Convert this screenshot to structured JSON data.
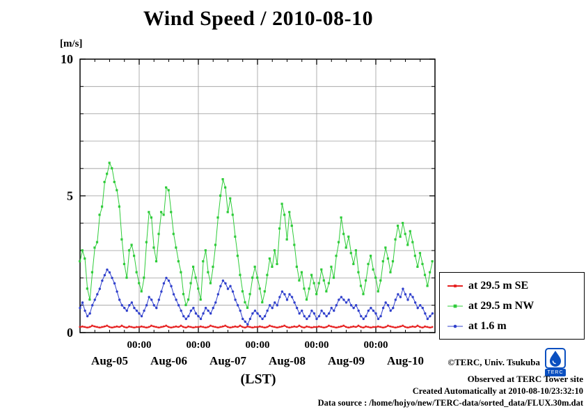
{
  "title": "Wind Speed / 2010-08-10",
  "y_axis_unit_label": "[m/s]",
  "x_axis_label": "(LST)",
  "footer": {
    "line1": "©TERC, Univ. Tsukuba",
    "line2": "Observed at TERC Tower site",
    "line3": "Created Automatically at 2010-08-10/23:32:10",
    "line4": "Data source : /home/hojyo/new/TERC-data/sorted_data/FLUX.30m.dat"
  },
  "logo": {
    "text": "TERC"
  },
  "chart_data": {
    "type": "line",
    "title": "Wind Speed / 2010-08-10",
    "xlabel": "(LST)",
    "ylabel": "[m/s]",
    "ylim": [
      0,
      10
    ],
    "y_major_ticks": [
      0,
      5,
      10
    ],
    "y_grid_interval": 1,
    "grid": true,
    "legend_position": "outside-right",
    "x_start": "Aug-05 00:00",
    "x_end": "Aug-11 00:00",
    "x_hours_total": 144,
    "sample_interval_hours": 1,
    "x_midnight_tick_label": "00:00",
    "day_labels": [
      "Aug-05",
      "Aug-06",
      "Aug-07",
      "Aug-08",
      "Aug-09",
      "Aug-10"
    ],
    "series": [
      {
        "name": "at 29.5 m SE",
        "color": "#e62020",
        "marker": "square",
        "marker_size": 2.4,
        "line_width": 2,
        "values": [
          0.2,
          0.22,
          0.2,
          0.18,
          0.2,
          0.25,
          0.22,
          0.2,
          0.18,
          0.2,
          0.22,
          0.25,
          0.2,
          0.18,
          0.2,
          0.22,
          0.2,
          0.25,
          0.2,
          0.18,
          0.22,
          0.2,
          0.18,
          0.2,
          0.2,
          0.22,
          0.2,
          0.18,
          0.2,
          0.25,
          0.22,
          0.2,
          0.18,
          0.2,
          0.22,
          0.25,
          0.2,
          0.18,
          0.2,
          0.22,
          0.2,
          0.25,
          0.2,
          0.18,
          0.22,
          0.2,
          0.18,
          0.2,
          0.2,
          0.22,
          0.2,
          0.18,
          0.2,
          0.25,
          0.22,
          0.2,
          0.18,
          0.2,
          0.22,
          0.25,
          0.2,
          0.18,
          0.2,
          0.22,
          0.2,
          0.25,
          0.2,
          0.18,
          0.22,
          0.2,
          0.18,
          0.2,
          0.2,
          0.22,
          0.2,
          0.18,
          0.2,
          0.25,
          0.22,
          0.2,
          0.18,
          0.2,
          0.22,
          0.25,
          0.2,
          0.18,
          0.2,
          0.22,
          0.2,
          0.25,
          0.2,
          0.18,
          0.22,
          0.2,
          0.18,
          0.2,
          0.2,
          0.22,
          0.2,
          0.18,
          0.2,
          0.25,
          0.22,
          0.2,
          0.18,
          0.2,
          0.22,
          0.25,
          0.2,
          0.18,
          0.2,
          0.22,
          0.2,
          0.25,
          0.2,
          0.18,
          0.22,
          0.2,
          0.18,
          0.2,
          0.2,
          0.22,
          0.2,
          0.18,
          0.2,
          0.25,
          0.22,
          0.2,
          0.18,
          0.2,
          0.22,
          0.25,
          0.2,
          0.18,
          0.2,
          0.22,
          0.2,
          0.25,
          0.2,
          0.18,
          0.22,
          0.2,
          0.18,
          0.2
        ]
      },
      {
        "name": "at 29.5 m NW",
        "color": "#2fcc3a",
        "marker": "square",
        "marker_size": 3.2,
        "line_width": 1,
        "values": [
          2.6,
          3.0,
          2.7,
          1.6,
          1.2,
          2.2,
          3.1,
          3.3,
          4.3,
          4.6,
          5.5,
          5.8,
          6.2,
          6.0,
          5.5,
          5.2,
          4.6,
          3.4,
          2.5,
          2.0,
          3.0,
          3.2,
          2.8,
          2.2,
          1.8,
          1.5,
          2.0,
          3.3,
          4.4,
          4.2,
          3.1,
          2.6,
          3.6,
          4.4,
          4.3,
          5.3,
          5.2,
          4.4,
          3.6,
          3.1,
          2.6,
          2.2,
          1.4,
          1.0,
          1.2,
          1.8,
          2.4,
          2.0,
          1.6,
          1.2,
          2.6,
          3.0,
          2.2,
          1.8,
          2.4,
          3.2,
          4.2,
          5.0,
          5.6,
          5.3,
          4.4,
          4.9,
          4.3,
          3.5,
          2.8,
          2.1,
          1.5,
          1.1,
          0.9,
          1.4,
          2.0,
          2.4,
          2.0,
          1.6,
          1.1,
          1.5,
          2.1,
          2.7,
          2.4,
          3.0,
          2.5,
          3.8,
          4.7,
          4.3,
          3.4,
          4.4,
          3.9,
          3.2,
          2.4,
          1.9,
          2.2,
          1.6,
          1.2,
          1.6,
          2.1,
          1.8,
          1.4,
          1.8,
          2.3,
          1.9,
          1.5,
          1.8,
          2.4,
          2.0,
          2.8,
          3.3,
          4.2,
          3.6,
          3.1,
          3.5,
          2.9,
          2.5,
          3.0,
          2.2,
          1.7,
          1.4,
          1.9,
          2.5,
          2.8,
          2.3,
          2.0,
          1.5,
          1.9,
          2.6,
          3.1,
          2.7,
          2.2,
          2.6,
          3.4,
          3.9,
          3.5,
          4.0,
          3.6,
          3.2,
          3.7,
          3.3,
          2.8,
          2.4,
          2.9,
          2.5,
          2.1,
          1.7,
          2.2,
          2.6
        ]
      },
      {
        "name": "at 1.6 m",
        "color": "#3040cc",
        "marker": "circle",
        "marker_size": 1.7,
        "line_width": 1,
        "values": [
          0.9,
          1.1,
          0.8,
          0.6,
          0.7,
          1.0,
          1.2,
          1.4,
          1.6,
          1.9,
          2.1,
          2.3,
          2.2,
          2.0,
          1.8,
          1.5,
          1.2,
          1.0,
          0.9,
          0.8,
          1.0,
          1.1,
          0.9,
          0.8,
          0.7,
          0.6,
          0.8,
          1.0,
          1.3,
          1.2,
          1.0,
          0.9,
          1.2,
          1.5,
          1.8,
          2.0,
          1.9,
          1.7,
          1.4,
          1.2,
          1.0,
          0.8,
          0.6,
          0.5,
          0.6,
          0.8,
          0.9,
          0.7,
          0.6,
          0.5,
          0.7,
          0.9,
          0.8,
          0.7,
          0.9,
          1.1,
          1.4,
          1.7,
          1.9,
          1.8,
          1.6,
          1.7,
          1.5,
          1.2,
          1.0,
          0.8,
          0.5,
          0.4,
          0.3,
          0.5,
          0.7,
          0.8,
          0.7,
          0.6,
          0.5,
          0.6,
          0.8,
          1.0,
          0.9,
          1.1,
          1.0,
          1.3,
          1.5,
          1.4,
          1.2,
          1.4,
          1.3,
          1.1,
          0.9,
          0.7,
          0.8,
          0.6,
          0.5,
          0.6,
          0.8,
          0.7,
          0.5,
          0.6,
          0.8,
          0.7,
          0.6,
          0.7,
          0.9,
          0.8,
          1.0,
          1.2,
          1.3,
          1.2,
          1.1,
          1.2,
          1.0,
          0.9,
          1.0,
          0.8,
          0.6,
          0.5,
          0.6,
          0.8,
          0.9,
          0.8,
          0.7,
          0.5,
          0.6,
          0.9,
          1.1,
          1.0,
          0.8,
          0.9,
          1.2,
          1.4,
          1.3,
          1.6,
          1.4,
          1.2,
          1.4,
          1.3,
          1.1,
          0.9,
          1.0,
          0.9,
          0.7,
          0.5,
          0.6,
          0.7
        ]
      }
    ]
  }
}
